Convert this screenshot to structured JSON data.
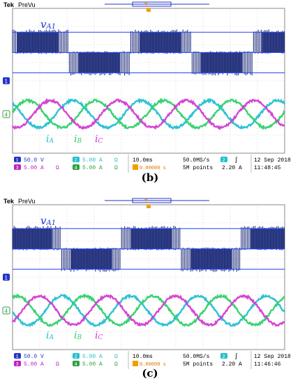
{
  "chart_data": [
    {
      "type": "line",
      "header": {
        "brand": "Tek",
        "mode": "PreVu",
        "marker_t": "T"
      },
      "voltage_label": {
        "symbol": "v",
        "sub": "A1"
      },
      "current_labels": [
        {
          "symbol": "i",
          "sub": "A",
          "color": "#22bfd0"
        },
        {
          "symbol": "i",
          "sub": "B",
          "color": "#2fd06a"
        },
        {
          "symbol": "i",
          "sub": "C",
          "color": "#d23bd2"
        }
      ],
      "channel_markers": {
        "ch1": "1",
        "ch4": "4"
      },
      "readouts": {
        "ch1_num": "1",
        "ch1": "50.0 V",
        "ch2_num": "2",
        "ch2": "5.00 A",
        "ch3_num": "3",
        "ch3": "5.00 A",
        "ch4_num": "4",
        "ch4": "5.00 A",
        "ohm": "Ω",
        "timebase": "10.0ms",
        "sample_rate": "50.0MS/s",
        "trigger_offset": "0.00000 s",
        "record_length": "5M points",
        "trigger_ch": "2",
        "trigger_slope": "∫",
        "trigger_level": "2.20 A",
        "date": "12 Sep 2018",
        "time": "11:48:45"
      },
      "waveforms": {
        "voltage_cycle_divs": 4.5,
        "voltage_offset_divs": 0.2,
        "current_cycle_divs": 2.5,
        "current_offset_divs": 0.9,
        "current_amplitude_divs": 0.75
      },
      "colors": {
        "voltage": "#0a1a6e",
        "ch1": "#2233cc",
        "ia": "#22bfd0",
        "ib": "#2fd06a",
        "ic": "#d23bd2",
        "trigger": "#f0a000"
      },
      "caption": "(b)"
    },
    {
      "type": "line",
      "header": {
        "brand": "Tek",
        "mode": "PreVu",
        "marker_t": "T"
      },
      "voltage_label": {
        "symbol": "v",
        "sub": "A1"
      },
      "current_labels": [
        {
          "symbol": "i",
          "sub": "A",
          "color": "#22bfd0"
        },
        {
          "symbol": "i",
          "sub": "B",
          "color": "#2fd06a"
        },
        {
          "symbol": "i",
          "sub": "C",
          "color": "#d23bd2"
        }
      ],
      "channel_markers": {
        "ch1": "1",
        "ch4": "4"
      },
      "readouts": {
        "ch1_num": "1",
        "ch1": "50.0 V",
        "ch2_num": "2",
        "ch2": "5.00 A",
        "ch3_num": "3",
        "ch3": "5.00 A",
        "ch4_num": "4",
        "ch4": "5.00 A",
        "ohm": "Ω",
        "timebase": "10.0ms",
        "sample_rate": "50.0MS/s",
        "trigger_offset": "0.00000 s",
        "record_length": "5M points",
        "trigger_ch": "2",
        "trigger_slope": "∫",
        "trigger_level": "2.20 A",
        "date": "12 Sep 2018",
        "time": "11:46:46"
      },
      "waveforms": {
        "voltage_cycle_divs": 4.4,
        "voltage_offset_divs": 0.4,
        "current_cycle_divs": 2.5,
        "current_offset_divs": 1.3,
        "current_amplitude_divs": 0.8
      },
      "colors": {
        "voltage": "#0a1a6e",
        "ch1": "#2233cc",
        "ia": "#22bfd0",
        "ib": "#2fd06a",
        "ic": "#d23bd2",
        "trigger": "#f0a000"
      },
      "caption": "(c)"
    }
  ]
}
